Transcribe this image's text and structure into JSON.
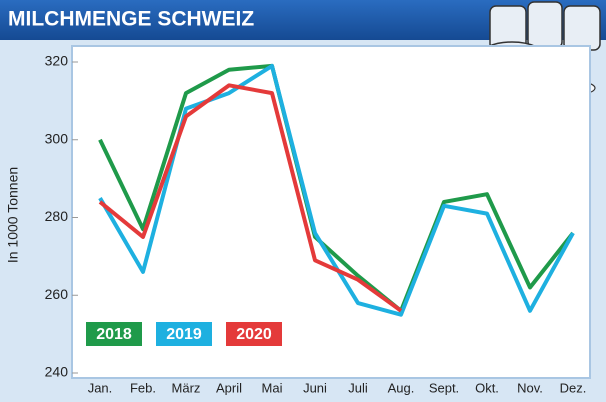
{
  "chart_data": {
    "type": "line",
    "title": "MILCHMENGE SCHWEIZ",
    "y_label": "In 1000 Tonnen",
    "categories": [
      "Jan.",
      "Feb.",
      "März",
      "April",
      "Mai",
      "Juni",
      "Juli",
      "Aug.",
      "Sept.",
      "Okt.",
      "Nov.",
      "Dez."
    ],
    "series": [
      {
        "name": "2018",
        "color": "#1f9a4a",
        "values": [
          300,
          277,
          312,
          318,
          319,
          275,
          265,
          256,
          284,
          286,
          262,
          276
        ]
      },
      {
        "name": "2019",
        "color": "#1eb0e0",
        "values": [
          285,
          266,
          308,
          312,
          319,
          276,
          258,
          255,
          283,
          281,
          256,
          276
        ]
      },
      {
        "name": "2020",
        "color": "#e43a3a",
        "values": [
          284,
          275,
          306,
          314,
          312,
          269,
          264,
          256,
          null,
          null,
          null,
          null
        ]
      }
    ],
    "ylim": [
      240,
      320
    ],
    "yticks": [
      240,
      260,
      280,
      300,
      320
    ],
    "grid": false
  }
}
